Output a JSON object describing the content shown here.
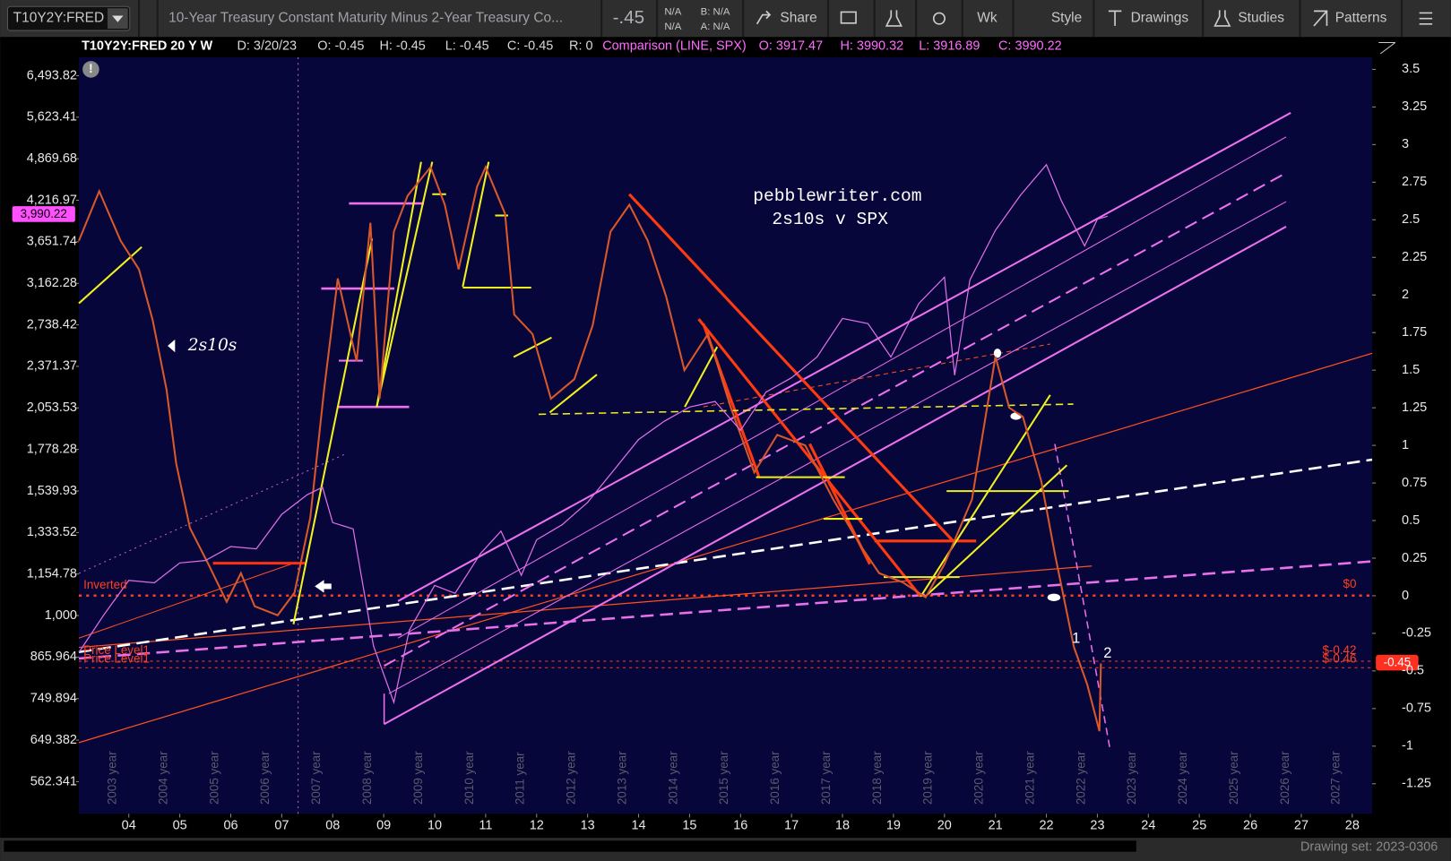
{
  "toolbar": {
    "symbol": "T10Y2Y:FRED",
    "description": "10-Year Treasury Constant Maturity Minus 2-Year Treasury Co...",
    "last": "-.45",
    "quote": [
      "N/A",
      "N/A",
      "B: N/A",
      "A: N/A"
    ],
    "buttons": [
      "Share",
      "Wk",
      "Style",
      "Drawings",
      "Studies",
      "Patterns"
    ]
  },
  "header": {
    "study": "T10Y2Y:FRED 20 Y W",
    "fields": [
      "D: 3/20/23",
      "O: -0.45",
      "H: -0.45",
      "L: -0.45",
      "C: -0.45",
      "R: 0"
    ],
    "comparison": "Comparison (LINE, SPX)",
    "comparison_fields": [
      "O: 3917.47",
      "H: 3990.32",
      "L: 3916.89",
      "C: 3990.22"
    ]
  },
  "chart_data": {
    "type": "line",
    "log_scale": true,
    "xlim": [
      2003.02,
      2028.39
    ],
    "xticks": [
      {
        "value": 2004,
        "label": "04"
      },
      {
        "value": 2005,
        "label": "05"
      },
      {
        "value": 2006,
        "label": "06"
      },
      {
        "value": 2007,
        "label": "07"
      },
      {
        "value": 2008,
        "label": "08"
      },
      {
        "value": 2009,
        "label": "09"
      },
      {
        "value": 2010,
        "label": "10"
      },
      {
        "value": 2011,
        "label": "11"
      },
      {
        "value": 2012,
        "label": "12"
      },
      {
        "value": 2013,
        "label": "13"
      },
      {
        "value": 2014,
        "label": "14"
      },
      {
        "value": 2015,
        "label": "15"
      },
      {
        "value": 2016,
        "label": "16"
      },
      {
        "value": 2017,
        "label": "17"
      },
      {
        "value": 2018,
        "label": "18"
      },
      {
        "value": 2019,
        "label": "19"
      },
      {
        "value": 2020,
        "label": "20"
      },
      {
        "value": 2021,
        "label": "21"
      },
      {
        "value": 2022,
        "label": "22"
      },
      {
        "value": 2023,
        "label": "23"
      },
      {
        "value": 2024,
        "label": "24"
      },
      {
        "value": 2025,
        "label": "25"
      },
      {
        "value": 2026,
        "label": "26"
      },
      {
        "value": 2027,
        "label": "27"
      },
      {
        "value": 2028,
        "label": "28"
      }
    ],
    "year_labels": [
      {
        "value": 2003,
        "label": "2003 year"
      },
      {
        "value": 2004,
        "label": "2004 year"
      },
      {
        "value": 2005,
        "label": "2005 year"
      },
      {
        "value": 2006,
        "label": "2006 year"
      },
      {
        "value": 2007,
        "label": "2007 year"
      },
      {
        "value": 2008,
        "label": "2008 year"
      },
      {
        "value": 2009,
        "label": "2009 year"
      },
      {
        "value": 2010,
        "label": "2010 year"
      },
      {
        "value": 2011,
        "label": "2011 year"
      },
      {
        "value": 2012,
        "label": "2012 year"
      },
      {
        "value": 2013,
        "label": "2013 year"
      },
      {
        "value": 2014,
        "label": "2014 year"
      },
      {
        "value": 2015,
        "label": "2015 year"
      },
      {
        "value": 2016,
        "label": "2016 year"
      },
      {
        "value": 2017,
        "label": "2017 year"
      },
      {
        "value": 2018,
        "label": "2018 year"
      },
      {
        "value": 2019,
        "label": "2019 year"
      },
      {
        "value": 2020,
        "label": "2020 year"
      },
      {
        "value": 2021,
        "label": "2021 year"
      },
      {
        "value": 2022,
        "label": "2022 year"
      },
      {
        "value": 2023,
        "label": "2023 year"
      },
      {
        "value": 2024,
        "label": "2024 year"
      },
      {
        "value": 2025,
        "label": "2025 year"
      },
      {
        "value": 2026,
        "label": "2026 year"
      },
      {
        "value": 2027,
        "label": "2027 year"
      }
    ],
    "ylim": [
      503,
      6920
    ],
    "yticks": [
      {
        "value": 6493.82,
        "label": "6,493.82"
      },
      {
        "value": 5623.41,
        "label": "5,623.41"
      },
      {
        "value": 4869.68,
        "label": "4,869.68"
      },
      {
        "value": 4216.97,
        "label": "4,216.97"
      },
      {
        "value": 3651.74,
        "label": "3,651.74"
      },
      {
        "value": 3162.28,
        "label": "3,162.28"
      },
      {
        "value": 2738.42,
        "label": "2,738.42"
      },
      {
        "value": 2371.37,
        "label": "2,371.37"
      },
      {
        "value": 2053.53,
        "label": "2,053.53"
      },
      {
        "value": 1778.28,
        "label": "1,778.28"
      },
      {
        "value": 1539.93,
        "label": "1,539.93"
      },
      {
        "value": 1333.52,
        "label": "1,333.52"
      },
      {
        "value": 1154.78,
        "label": "1,154.78"
      },
      {
        "value": 1000,
        "label": "1,000"
      },
      865.964,
      749.894,
      649.382,
      562.341
    ],
    "y2lim": [
      -1.45,
      3.58
    ],
    "y2ticks": [
      3.5,
      3.25,
      3,
      2.75,
      2.5,
      2.25,
      2,
      1.75,
      1.5,
      1.25,
      1,
      0.75,
      0.5,
      0.25,
      0,
      -0.25,
      -0.5,
      -0.75,
      -1,
      -1.25
    ],
    "series": [
      {
        "name": "2s10s",
        "axis": "y2",
        "color": "#d8582a",
        "x": [
          2003.02,
          2003.42,
          2003.84,
          2004.2,
          2004.47,
          2004.74,
          2004.93,
          2005.2,
          2005.56,
          2005.92,
          2006.2,
          2006.47,
          2006.92,
          2007.25,
          2007.56,
          2007.83,
          2008.1,
          2008.47,
          2008.74,
          2008.92,
          2009.2,
          2009.47,
          2009.92,
          2010.2,
          2010.47,
          2010.83,
          2011.0,
          2011.38,
          2011.56,
          2011.92,
          2012.28,
          2012.74,
          2013.1,
          2013.45,
          2013.82,
          2014.18,
          2014.54,
          2014.9,
          2015.36,
          2015.81,
          2016.27,
          2016.72,
          2017.27,
          2017.82,
          2018.36,
          2018.72,
          2019.18,
          2019.63,
          2020.0,
          2020.54,
          2021.0,
          2021.27,
          2021.54,
          2021.9,
          2022.17,
          2022.54,
          2022.8,
          2023.04,
          2023.07
        ],
        "values": [
          2.36,
          2.69,
          2.36,
          2.17,
          1.83,
          1.37,
          0.88,
          0.45,
          0.21,
          -0.04,
          0.15,
          -0.07,
          -0.13,
          0.02,
          0.52,
          1.37,
          2.11,
          1.56,
          2.48,
          1.31,
          2.42,
          2.66,
          2.85,
          2.6,
          2.17,
          2.72,
          2.85,
          2.54,
          1.87,
          1.74,
          1.31,
          1.44,
          1.8,
          2.42,
          2.6,
          2.36,
          1.99,
          1.5,
          1.74,
          1.25,
          0.82,
          1.07,
          1.0,
          0.64,
          0.33,
          0.15,
          0.09,
          -0.01,
          0.21,
          0.64,
          1.59,
          1.25,
          1.19,
          0.76,
          0.27,
          -0.34,
          -0.59,
          -0.9,
          -0.45
        ]
      },
      {
        "axis": "y",
        "color": "#e070e8",
        "x": [
          2003.02,
          2003.5,
          2004.0,
          2004.5,
          2005.0,
          2005.5,
          2006.0,
          2006.5,
          2007.0,
          2007.5,
          2007.8,
          2008.0,
          2008.4,
          2008.8,
          2009.2,
          2009.5,
          2010.0,
          2010.4,
          2010.9,
          2011.3,
          2011.7,
          2012.0,
          2012.5,
          2013.0,
          2013.5,
          2014.0,
          2014.5,
          2015.0,
          2015.5,
          2016.0,
          2016.5,
          2017.0,
          2017.5,
          2018.0,
          2018.5,
          2018.95,
          2019.5,
          2020.0,
          2020.2,
          2020.5,
          2021.0,
          2021.5,
          2022.0,
          2022.3,
          2022.75,
          2023.0,
          2023.2
        ],
        "values": [
          880,
          1000,
          1130,
          1120,
          1200,
          1210,
          1270,
          1260,
          1420,
          1520,
          1560,
          1380,
          1350,
          900,
          740,
          950,
          1110,
          1080,
          1240,
          1340,
          1150,
          1300,
          1370,
          1480,
          1650,
          1840,
          1960,
          2060,
          2100,
          1900,
          2170,
          2280,
          2450,
          2800,
          2750,
          2450,
          2950,
          3230,
          2300,
          3200,
          3800,
          4300,
          4770,
          4200,
          3600,
          3950,
          3990.22
        ]
      }
    ],
    "annotations": {
      "site": "pebblewriter.com",
      "subtitle": "2s10s v SPX",
      "inverted": "Inverted",
      "price_level_1": "Price Level1",
      "price_level_2": "Price Level1",
      "zero": "$0",
      "level_a": "$-0.42",
      "level_b": "$-0.46",
      "marker_1": "1",
      "marker_2": "2",
      "last_badge": "-0.45",
      "spx_badge": "3,990.22"
    }
  },
  "footer": {
    "drawing_set": "Drawing set: 2023-0306"
  }
}
